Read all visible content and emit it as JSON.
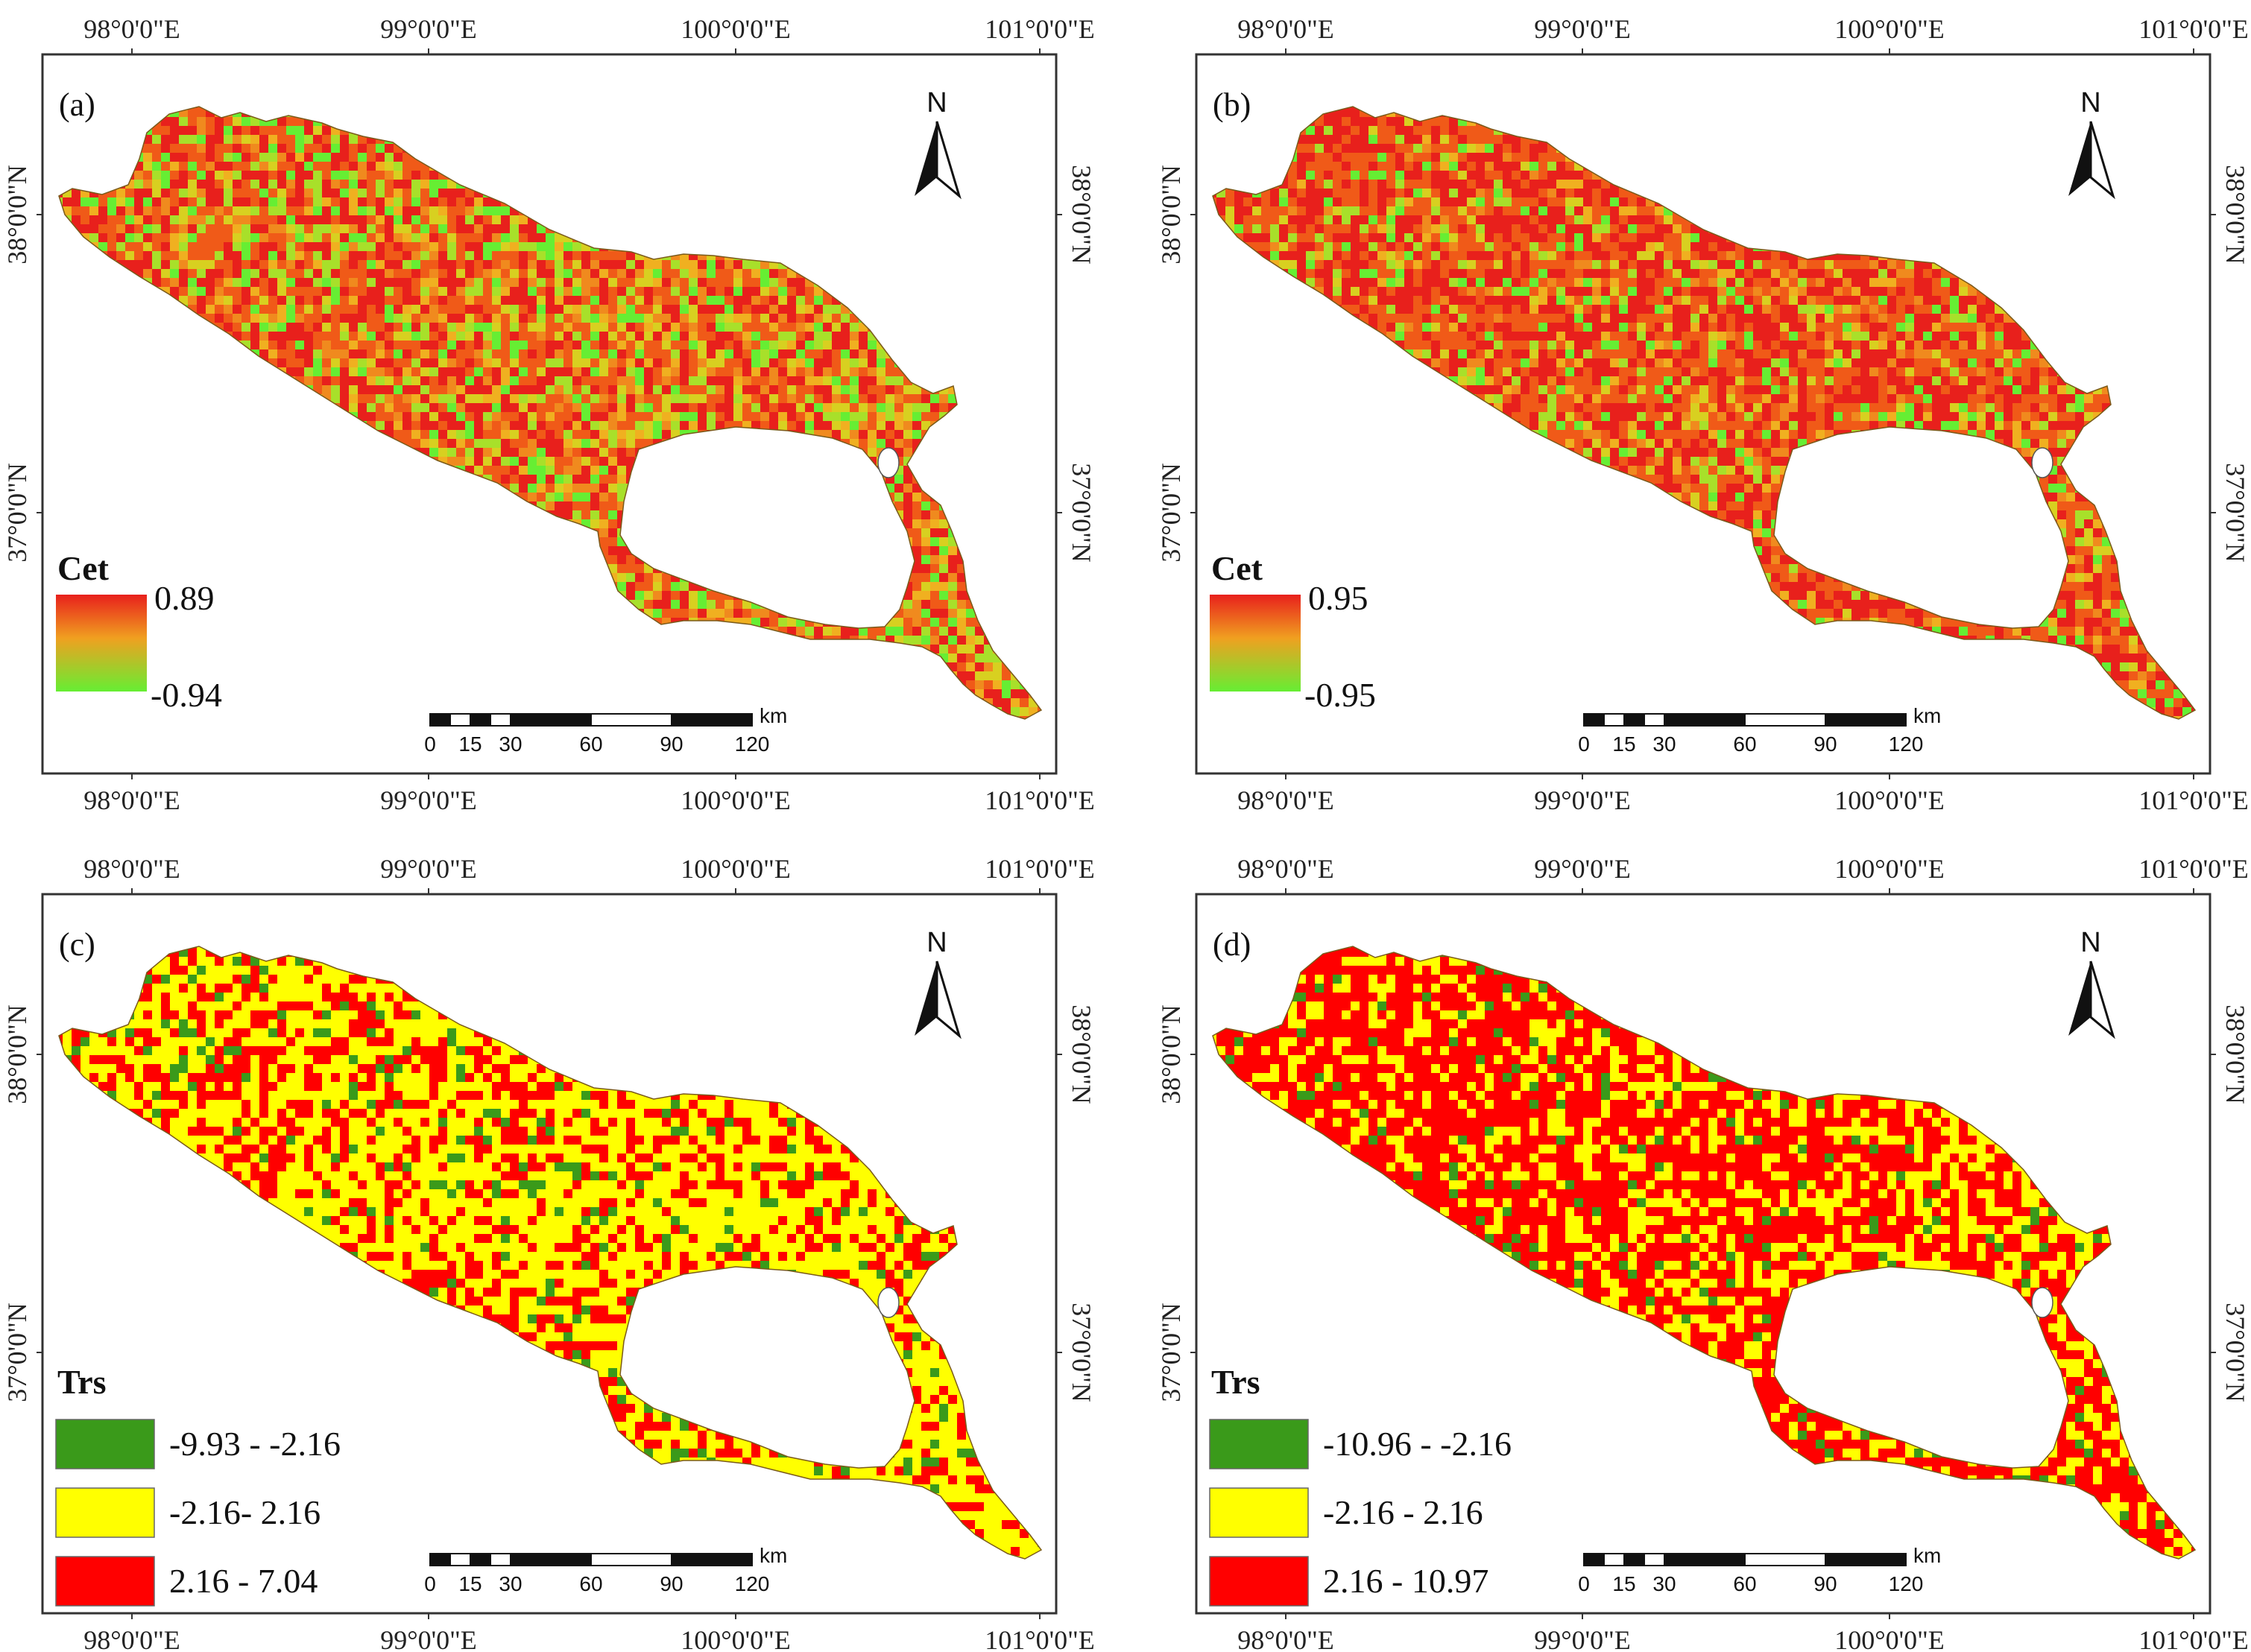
{
  "colors": {
    "cet_high": "#e8201c",
    "cet_mid": "#f0a020",
    "cet_low": "#66ee33",
    "trs_green": "#3a9a1a",
    "trs_yellow": "#ffff00",
    "trs_red": "#ff0000",
    "frame": "#333333"
  },
  "axes": {
    "lon_labels": [
      "98°0'0\"E",
      "99°0'0\"E",
      "100°0'0\"E",
      "101°0'0\"E"
    ],
    "lat_labels": [
      "38°0'0\"N",
      "37°0'0\"N"
    ]
  },
  "north_label": "N",
  "scalebar": {
    "ticks": [
      "0",
      "15",
      "30",
      "60",
      "90",
      "120"
    ],
    "unit": "km"
  },
  "panels": [
    {
      "label": "(a)",
      "legend_type": "gradient",
      "legend_title": "Cet",
      "legend_max": "0.89",
      "legend_min": "-0.94",
      "pattern": "cet",
      "red_share": 0.45,
      "green_share": 0.22
    },
    {
      "label": "(b)",
      "legend_type": "gradient",
      "legend_title": "Cet",
      "legend_max": "0.95",
      "legend_min": "-0.95",
      "pattern": "cet",
      "red_share": 0.65,
      "green_share": 0.12
    },
    {
      "label": "(c)",
      "legend_type": "classes",
      "legend_title": "Trs",
      "classes": [
        {
          "label": "-9.93 - -2.16",
          "color": "#3a9a1a"
        },
        {
          "label": "-2.16- 2.16",
          "color": "#ffff00"
        },
        {
          "label": "2.16 - 7.04",
          "color": "#ff0000"
        }
      ],
      "pattern": "trs",
      "red_share": 0.28,
      "green_share": 0.08
    },
    {
      "label": "(d)",
      "legend_type": "classes",
      "legend_title": "Trs",
      "classes": [
        {
          "label": "-10.96 - -2.16",
          "color": "#3a9a1a"
        },
        {
          "label": "-2.16 - 2.16",
          "color": "#ffff00"
        },
        {
          "label": "2.16 - 10.97",
          "color": "#ff0000"
        }
      ],
      "pattern": "trs",
      "red_share": 0.55,
      "green_share": 0.06
    }
  ]
}
